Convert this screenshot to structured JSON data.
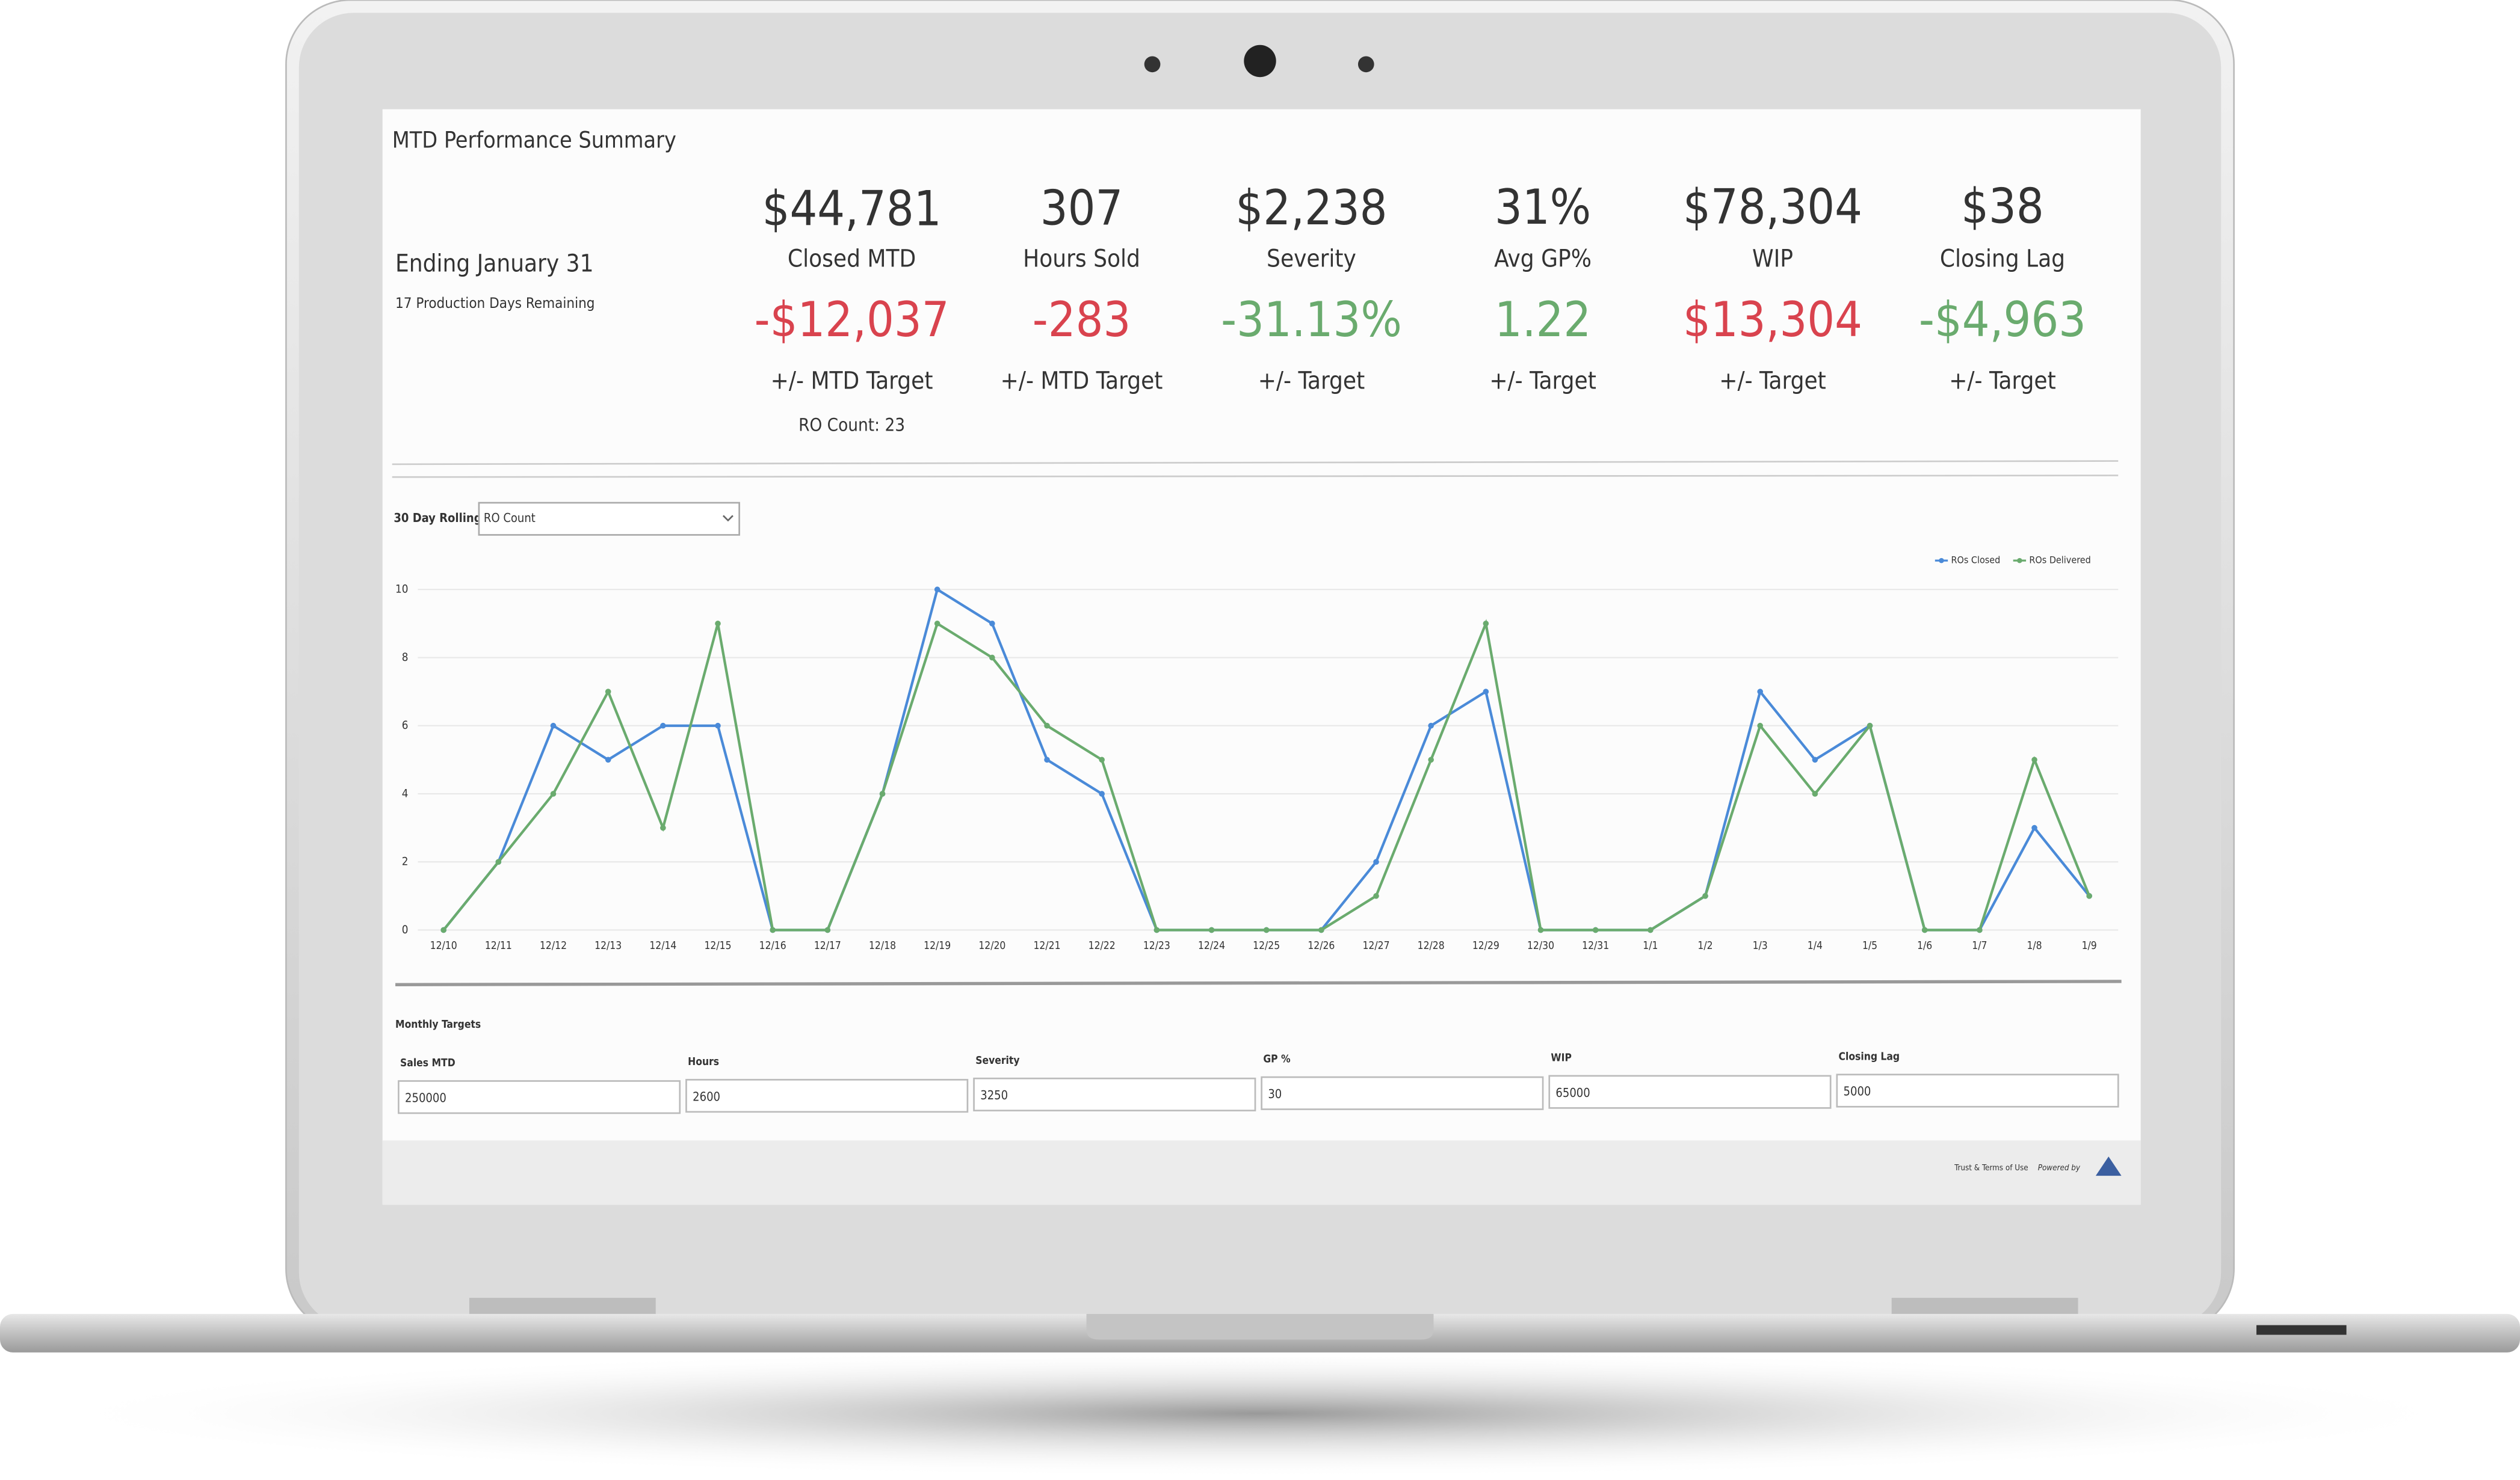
{
  "header": {
    "title": "MTD Performance Summary",
    "period": "Ending January 31",
    "days_remaining": "17 Production Days Remaining"
  },
  "kpis": [
    {
      "value": "$44,781",
      "label": "Closed MTD",
      "delta": "-$12,037",
      "delta_label": "+/- MTD Target",
      "delta_color": "#d9434e",
      "note": "RO Count: 23"
    },
    {
      "value": "307",
      "label": "Hours Sold",
      "delta": "-283",
      "delta_label": "+/- MTD Target",
      "delta_color": "#d9434e"
    },
    {
      "value": "$2,238",
      "label": "Severity",
      "delta": "-31.13%",
      "delta_label": "+/- Target",
      "delta_color": "#6aab6e"
    },
    {
      "value": "31%",
      "label": "Avg GP%",
      "delta": "1.22",
      "delta_label": "+/- Target",
      "delta_color": "#6aab6e"
    },
    {
      "value": "$78,304",
      "label": "WIP",
      "delta": "$13,304",
      "delta_label": "+/- Target",
      "delta_color": "#d9434e"
    },
    {
      "value": "$38",
      "label": "Closing Lag",
      "delta": "-$4,963",
      "delta_label": "+/- Target",
      "delta_color": "#6aab6e"
    }
  ],
  "chart_data": {
    "type": "line",
    "rolling_label": "30 Day Rolling :",
    "selected_metric": "RO Count",
    "categories": [
      "12/10",
      "12/11",
      "12/12",
      "12/13",
      "12/14",
      "12/15",
      "12/16",
      "12/17",
      "12/18",
      "12/19",
      "12/20",
      "12/21",
      "12/22",
      "12/23",
      "12/24",
      "12/25",
      "12/26",
      "12/27",
      "12/28",
      "12/29",
      "12/30",
      "12/31",
      "1/1",
      "1/2",
      "1/3",
      "1/4",
      "1/5",
      "1/6",
      "1/7",
      "1/8",
      "1/9"
    ],
    "series": [
      {
        "name": "ROs Closed",
        "color": "#4a8ad8",
        "values": [
          0,
          2,
          6,
          5,
          6,
          6,
          0,
          0,
          4,
          10,
          9,
          5,
          4,
          0,
          0,
          0,
          0,
          2,
          6,
          7,
          0,
          0,
          0,
          1,
          7,
          5,
          6,
          0,
          0,
          3,
          1
        ]
      },
      {
        "name": "ROs Delivered",
        "color": "#6aab6e",
        "values": [
          0,
          2,
          4,
          7,
          3,
          9,
          0,
          0,
          4,
          9,
          8,
          6,
          5,
          0,
          0,
          0,
          0,
          1,
          5,
          9,
          0,
          0,
          0,
          1,
          6,
          4,
          6,
          0,
          0,
          5,
          1
        ]
      }
    ],
    "ylim": [
      0,
      10
    ],
    "yticks": [
      0,
      2,
      4,
      6,
      8,
      10
    ],
    "grid": true,
    "legend": "top-right"
  },
  "targets": {
    "title": "Monthly Targets",
    "fields": [
      {
        "label": "Sales MTD",
        "value": "250000"
      },
      {
        "label": "Hours",
        "value": "2600"
      },
      {
        "label": "Severity",
        "value": "3250"
      },
      {
        "label": "GP %",
        "value": "30"
      },
      {
        "label": "WIP",
        "value": "65000"
      },
      {
        "label": "Closing Lag",
        "value": "5000"
      }
    ]
  },
  "footer": {
    "link": "Trust & Terms of Use",
    "powered": "Powered by"
  }
}
